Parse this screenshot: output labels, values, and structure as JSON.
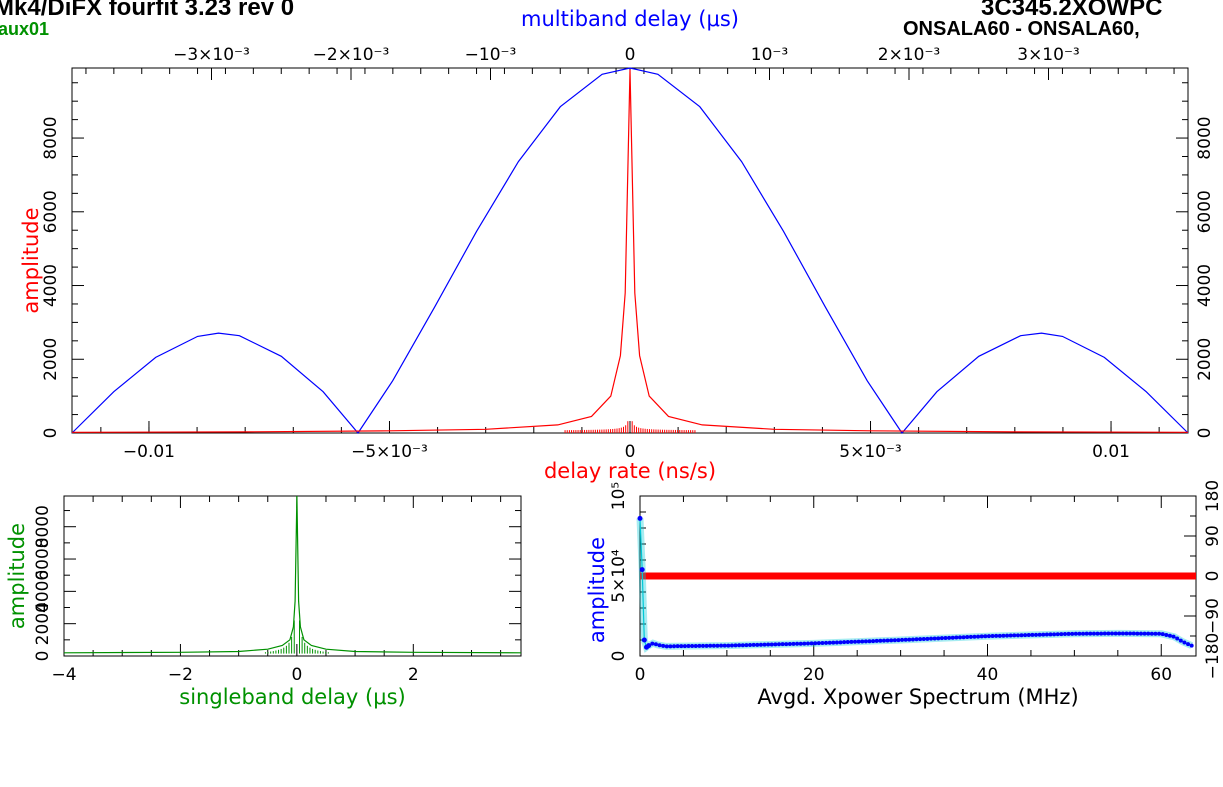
{
  "header": {
    "title": "Mk4/DiFX fourfit 3.23 rev 0",
    "station": "aux01",
    "source": "3C345.2XOWPC",
    "baseline": "ONSALA60 - ONSALA60,"
  },
  "colors": {
    "red": "#ff0000",
    "blue": "#0000ff",
    "green": "#009100",
    "cyan": "#00c8d8",
    "axis": "#000000"
  },
  "chart_data": [
    {
      "type": "line",
      "panel": "top",
      "xlabel": "delay rate (ns/s)",
      "ylabel": "amplitude",
      "toplabel": "multiband delay (μs)",
      "xlim": [
        -0.0116,
        0.0116
      ],
      "ylim": [
        0,
        9900
      ],
      "top_xlim": [
        -0.004,
        0.004
      ],
      "xticks": [
        -0.01,
        -0.005,
        0.005,
        0.01
      ],
      "xticklabels": [
        "−0.01",
        "−5×10⁻³",
        "5×10⁻³",
        "0.01"
      ],
      "yticks": [
        0,
        2000,
        4000,
        6000,
        8000
      ],
      "yticklabels": [
        "0",
        "2000",
        "4000",
        "6000",
        "8000"
      ],
      "top_xticks": [
        -0.003,
        -0.002,
        -0.001,
        0,
        0.001,
        0.002,
        0.003
      ],
      "top_xticklabels": [
        "−3×10⁻³",
        "−2×10⁻³",
        "−10⁻³",
        "0",
        "10⁻³",
        "2×10⁻³",
        "3×10⁻³"
      ],
      "series": [
        {
          "axis": "top",
          "color": "#0000ff",
          "x": [
            -0.004,
            -0.0037,
            -0.0034,
            -0.0031,
            -0.00295,
            -0.0028,
            -0.0025,
            -0.0022,
            -0.00195,
            -0.0017,
            -0.0014,
            -0.0011,
            -0.0008,
            -0.0005,
            -0.0002,
            0,
            0.0002,
            0.0005,
            0.0008,
            0.0011,
            0.0014,
            0.0017,
            0.00195,
            0.0022,
            0.0025,
            0.0028,
            0.00295,
            0.0031,
            0.0034,
            0.0037,
            0.004
          ],
          "y": [
            0,
            1120,
            2050,
            2620,
            2710,
            2640,
            2080,
            1120,
            0,
            1420,
            3420,
            5470,
            7360,
            8850,
            9730,
            9900,
            9730,
            8850,
            7360,
            5470,
            3420,
            1420,
            0,
            1120,
            2080,
            2640,
            2710,
            2620,
            2050,
            1120,
            0
          ]
        },
        {
          "axis": "bottom",
          "color": "#ff0000",
          "x": [
            -0.0116,
            -0.008,
            -0.005,
            -0.003,
            -0.0015,
            -0.0008,
            -0.0004,
            -0.0002,
            -0.0001,
            0,
            0.0001,
            0.0002,
            0.0004,
            0.0008,
            0.0015,
            0.003,
            0.005,
            0.008,
            0.0116
          ],
          "y": [
            20,
            30,
            60,
            100,
            220,
            450,
            1000,
            2100,
            3800,
            9850,
            3800,
            2100,
            1000,
            450,
            220,
            100,
            60,
            30,
            20
          ]
        }
      ]
    },
    {
      "type": "line",
      "panel": "bottom-left",
      "xlabel": "singleband delay (μs)",
      "ylabel": "amplitude",
      "xlim": [
        -4,
        3.85
      ],
      "ylim": [
        0,
        9900
      ],
      "xticks": [
        -4,
        -2,
        0,
        2
      ],
      "xticklabels": [
        "−4",
        "−2",
        "0",
        "2"
      ],
      "yticks": [
        0,
        2000,
        4000,
        6000,
        8000
      ],
      "yticklabels": [
        "0",
        "2000",
        "4000",
        "6000",
        "8000"
      ],
      "series": [
        {
          "color": "#009100",
          "x": [
            -4,
            -2,
            -1,
            -0.5,
            -0.25,
            -0.12,
            -0.06,
            -0.03,
            0,
            0.03,
            0.06,
            0.12,
            0.25,
            0.5,
            1,
            2,
            3.85
          ],
          "y": [
            200,
            230,
            280,
            420,
            650,
            1000,
            1800,
            3400,
            9900,
            3400,
            1800,
            1000,
            650,
            420,
            280,
            230,
            200
          ]
        }
      ]
    },
    {
      "type": "scatter",
      "panel": "bottom-right",
      "xlabel": "Avgd. Xpower Spectrum (MHz)",
      "ylabel": "amplitude",
      "xlim": [
        0,
        64
      ],
      "ylim": [
        0,
        100000
      ],
      "y2lim": [
        -180,
        180
      ],
      "xticks": [
        0,
        20,
        40,
        60
      ],
      "xticklabels": [
        "0",
        "20",
        "40",
        "60"
      ],
      "yticklabels": [
        "0",
        "5×10⁴",
        "10⁵"
      ],
      "y2ticks": [
        -180,
        -90,
        0,
        90,
        180
      ],
      "y2ticklabels": [
        "−180",
        "−90",
        "0",
        "90",
        "180"
      ],
      "series": [
        {
          "axis": "left",
          "color": "#0000ff",
          "x": [
            0,
            0.25,
            0.5,
            0.75,
            1,
            1.5,
            2,
            3,
            5,
            10,
            15,
            20,
            30,
            40,
            50,
            55,
            60,
            61.5,
            62.5,
            63.5
          ],
          "y": [
            86000,
            54000,
            10000,
            5500,
            6500,
            8000,
            7000,
            6000,
            6200,
            6500,
            7200,
            7900,
            10000,
            12400,
            13900,
            14100,
            13900,
            12000,
            8800,
            6500
          ]
        },
        {
          "axis": "right",
          "color": "#ff0000",
          "x": [
            0,
            16,
            32,
            48,
            64
          ],
          "y": [
            0,
            0,
            0,
            0,
            0
          ]
        }
      ]
    }
  ]
}
